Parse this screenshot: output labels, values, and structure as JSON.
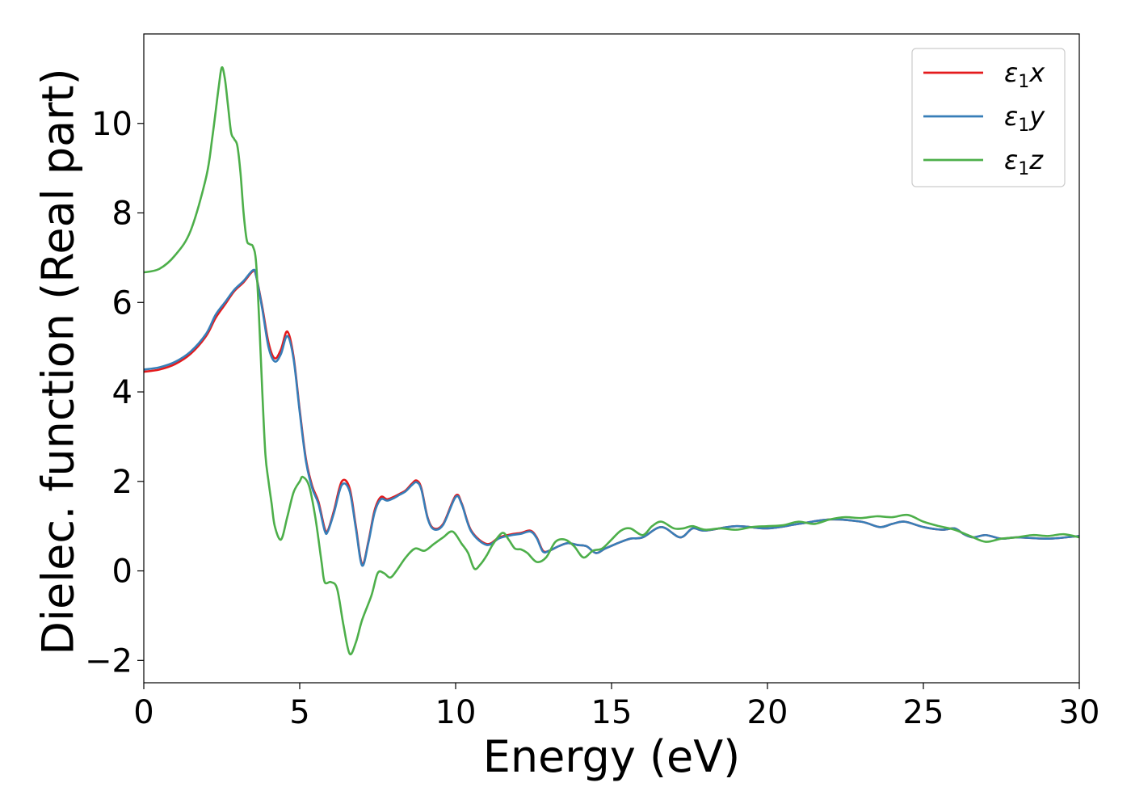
{
  "chart_data": {
    "type": "line",
    "xlabel": "Energy (eV)",
    "ylabel": "Dielec. function (Real part)",
    "xlim": [
      0,
      30
    ],
    "ylim": [
      -2.5,
      12
    ],
    "xticks": [
      0,
      5,
      10,
      15,
      20,
      25,
      30
    ],
    "yticks": [
      -2,
      0,
      2,
      4,
      6,
      8,
      10
    ],
    "xtick_labels": [
      "0",
      "5",
      "10",
      "15",
      "20",
      "25",
      "30"
    ],
    "ytick_labels": [
      "−2",
      "0",
      "2",
      "4",
      "6",
      "8",
      "10"
    ],
    "grid": false,
    "legend_position": "top-right",
    "series": [
      {
        "name": "ε",
        "name_sub": "1",
        "name_suffix": "x",
        "color": "#e41a1c",
        "x": [
          0,
          0.5,
          1,
          1.5,
          2,
          2.3,
          2.6,
          2.9,
          3.2,
          3.5,
          3.6,
          3.8,
          4,
          4.2,
          4.4,
          4.6,
          4.8,
          5,
          5.2,
          5.4,
          5.6,
          5.8,
          5.9,
          6.1,
          6.35,
          6.6,
          6.8,
          7.0,
          7.2,
          7.4,
          7.6,
          7.8,
          8,
          8.2,
          8.4,
          8.6,
          8.75,
          8.9,
          9.1,
          9.3,
          9.6,
          10,
          10.2,
          10.5,
          11,
          11.4,
          11.8,
          12.1,
          12.4,
          12.6,
          12.8,
          13,
          13.3,
          13.6,
          13.9,
          14.2,
          14.5,
          14.8,
          15.2,
          15.6,
          16,
          16.6,
          17.2,
          17.6,
          18,
          19,
          20,
          21,
          22,
          23,
          23.6,
          24,
          24.4,
          25,
          25.6,
          26,
          26.3,
          26.6,
          27,
          27.5,
          28,
          29,
          30
        ],
        "values": [
          4.45,
          4.5,
          4.62,
          4.85,
          5.25,
          5.65,
          5.95,
          6.25,
          6.45,
          6.7,
          6.6,
          5.9,
          5.1,
          4.75,
          4.95,
          5.35,
          4.8,
          3.6,
          2.5,
          1.9,
          1.55,
          0.95,
          0.9,
          1.35,
          2.0,
          1.85,
          1.0,
          0.15,
          0.65,
          1.35,
          1.65,
          1.6,
          1.65,
          1.72,
          1.8,
          1.95,
          2.02,
          1.85,
          1.2,
          0.95,
          1.05,
          1.68,
          1.5,
          0.9,
          0.6,
          0.75,
          0.82,
          0.85,
          0.9,
          0.75,
          0.45,
          0.45,
          0.55,
          0.62,
          0.58,
          0.55,
          0.4,
          0.5,
          0.62,
          0.72,
          0.75,
          0.98,
          0.75,
          0.95,
          0.9,
          1.0,
          0.95,
          1.05,
          1.15,
          1.1,
          0.98,
          1.05,
          1.1,
          0.98,
          0.92,
          0.95,
          0.82,
          0.75,
          0.8,
          0.72,
          0.75,
          0.72,
          0.78
        ]
      },
      {
        "name": "ε",
        "name_sub": "1",
        "name_suffix": "y",
        "color": "#377eb8",
        "x": [
          0,
          0.5,
          1,
          1.5,
          2,
          2.3,
          2.6,
          2.9,
          3.2,
          3.5,
          3.6,
          3.8,
          4,
          4.2,
          4.4,
          4.6,
          4.8,
          5,
          5.2,
          5.4,
          5.6,
          5.8,
          5.9,
          6.1,
          6.35,
          6.6,
          6.8,
          7.0,
          7.2,
          7.4,
          7.6,
          7.8,
          8,
          8.2,
          8.4,
          8.6,
          8.75,
          8.9,
          9.1,
          9.3,
          9.6,
          10,
          10.2,
          10.5,
          11,
          11.4,
          11.8,
          12.1,
          12.4,
          12.6,
          12.8,
          13,
          13.3,
          13.6,
          13.9,
          14.2,
          14.5,
          14.8,
          15.2,
          15.6,
          16,
          16.6,
          17.2,
          17.6,
          18,
          19,
          20,
          21,
          22,
          23,
          23.6,
          24,
          24.4,
          25,
          25.6,
          26,
          26.3,
          26.6,
          27,
          27.5,
          28,
          29,
          30
        ],
        "values": [
          4.5,
          4.55,
          4.67,
          4.9,
          5.3,
          5.72,
          6.0,
          6.28,
          6.48,
          6.72,
          6.6,
          5.85,
          5.0,
          4.68,
          4.85,
          5.25,
          4.75,
          3.55,
          2.45,
          1.85,
          1.5,
          0.9,
          0.88,
          1.3,
          1.92,
          1.78,
          0.95,
          0.12,
          0.62,
          1.3,
          1.6,
          1.57,
          1.62,
          1.7,
          1.78,
          1.92,
          1.98,
          1.82,
          1.18,
          0.93,
          1.03,
          1.65,
          1.48,
          0.88,
          0.58,
          0.73,
          0.8,
          0.83,
          0.88,
          0.73,
          0.43,
          0.45,
          0.55,
          0.62,
          0.58,
          0.55,
          0.4,
          0.5,
          0.62,
          0.72,
          0.75,
          0.98,
          0.75,
          0.95,
          0.9,
          1.0,
          0.95,
          1.05,
          1.15,
          1.1,
          0.98,
          1.05,
          1.1,
          0.98,
          0.92,
          0.95,
          0.82,
          0.75,
          0.8,
          0.72,
          0.75,
          0.72,
          0.78
        ]
      },
      {
        "name": "ε",
        "name_sub": "1",
        "name_suffix": "z",
        "color": "#4daf4a",
        "x": [
          0,
          0.5,
          1,
          1.5,
          2,
          2.2,
          2.4,
          2.5,
          2.6,
          2.7,
          2.8,
          2.9,
          3.0,
          3.1,
          3.2,
          3.3,
          3.4,
          3.5,
          3.6,
          3.7,
          3.8,
          3.9,
          4.0,
          4.1,
          4.2,
          4.4,
          4.6,
          4.8,
          5.0,
          5.1,
          5.3,
          5.5,
          5.7,
          5.8,
          6.0,
          6.2,
          6.4,
          6.6,
          6.8,
          7.0,
          7.3,
          7.5,
          7.7,
          7.9,
          8.1,
          8.4,
          8.7,
          9.0,
          9.3,
          9.6,
          9.9,
          10.2,
          10.4,
          10.6,
          10.8,
          11.0,
          11.2,
          11.5,
          11.7,
          11.9,
          12.1,
          12.3,
          12.6,
          12.9,
          13.2,
          13.5,
          13.8,
          14.1,
          14.4,
          14.7,
          15.0,
          15.3,
          15.6,
          16.0,
          16.3,
          16.6,
          17.0,
          17.3,
          17.6,
          18.0,
          18.5,
          19.0,
          19.5,
          20.0,
          20.5,
          21.0,
          21.5,
          22.0,
          22.5,
          23.0,
          23.5,
          24.0,
          24.5,
          25.0,
          25.5,
          26.0,
          26.5,
          27.0,
          27.5,
          28.0,
          28.5,
          29.0,
          29.5,
          30.0
        ],
        "values": [
          6.67,
          6.75,
          7.05,
          7.6,
          8.8,
          9.7,
          10.8,
          11.25,
          11.0,
          10.4,
          9.8,
          9.65,
          9.5,
          8.9,
          8.0,
          7.4,
          7.3,
          7.25,
          6.9,
          5.6,
          4.0,
          2.6,
          2.0,
          1.5,
          1.0,
          0.7,
          1.2,
          1.75,
          2.0,
          2.1,
          1.9,
          1.2,
          0.2,
          -0.25,
          -0.25,
          -0.4,
          -1.2,
          -1.85,
          -1.6,
          -1.1,
          -0.55,
          -0.05,
          -0.05,
          -0.15,
          0.0,
          0.3,
          0.5,
          0.45,
          0.6,
          0.75,
          0.88,
          0.6,
          0.4,
          0.05,
          0.15,
          0.35,
          0.6,
          0.85,
          0.7,
          0.5,
          0.48,
          0.4,
          0.2,
          0.3,
          0.65,
          0.7,
          0.55,
          0.3,
          0.45,
          0.5,
          0.7,
          0.9,
          0.95,
          0.8,
          1.0,
          1.1,
          0.95,
          0.95,
          1.0,
          0.92,
          0.95,
          0.92,
          0.98,
          1.0,
          1.02,
          1.1,
          1.05,
          1.15,
          1.2,
          1.18,
          1.22,
          1.2,
          1.25,
          1.1,
          1.0,
          0.92,
          0.78,
          0.65,
          0.72,
          0.75,
          0.8,
          0.78,
          0.82,
          0.75
        ]
      }
    ]
  }
}
